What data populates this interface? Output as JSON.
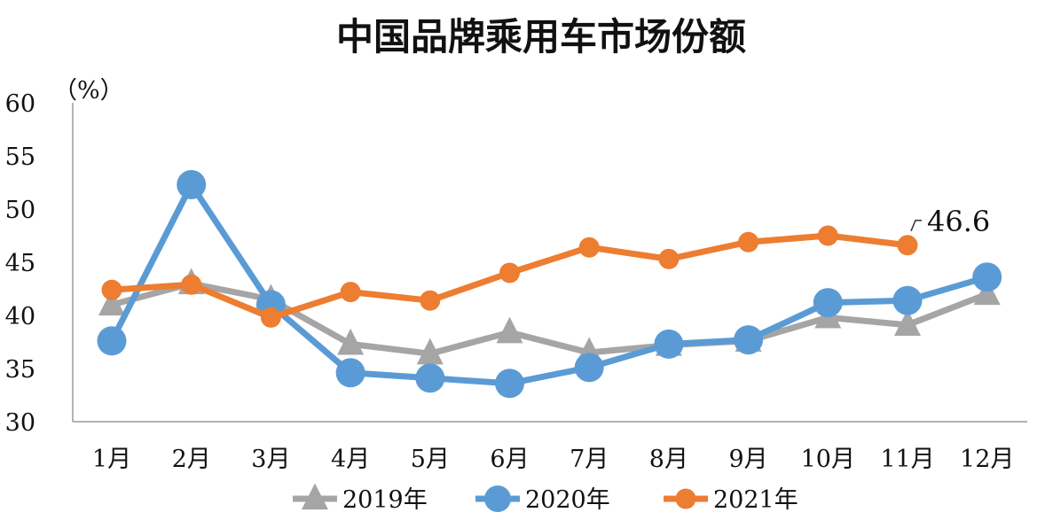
{
  "chart_data": {
    "type": "line",
    "title": "中国品牌乘用车市场份额",
    "ylabel": "（%）",
    "xlabel": "",
    "categories": [
      "1月",
      "2月",
      "3月",
      "4月",
      "5月",
      "6月",
      "7月",
      "8月",
      "9月",
      "10月",
      "11月",
      "12月"
    ],
    "ylim": [
      30,
      60
    ],
    "yticks": [
      "30",
      "35",
      "40",
      "45",
      "50",
      "55",
      "60"
    ],
    "grid": false,
    "legend_position": "bottom",
    "series": [
      {
        "name": "2019年",
        "color": "#A5A5A5",
        "marker": "triangle",
        "values": [
          41.0,
          43.0,
          41.5,
          37.3,
          36.4,
          38.4,
          36.5,
          37.2,
          37.6,
          39.8,
          39.1,
          42.0
        ]
      },
      {
        "name": "2020年",
        "color": "#5B9BD5",
        "marker": "circle",
        "values": [
          37.6,
          52.3,
          41.0,
          34.6,
          34.1,
          33.6,
          35.1,
          37.3,
          37.7,
          41.2,
          41.4,
          43.6
        ]
      },
      {
        "name": "2021年",
        "color": "#ED7D31",
        "marker": "circle",
        "values": [
          42.4,
          42.9,
          39.8,
          42.2,
          41.4,
          44.0,
          46.4,
          45.3,
          46.9,
          47.5,
          46.6,
          null
        ]
      }
    ],
    "annotations": [
      {
        "text": "46.6",
        "series": "2021年",
        "category": "11月"
      }
    ]
  }
}
